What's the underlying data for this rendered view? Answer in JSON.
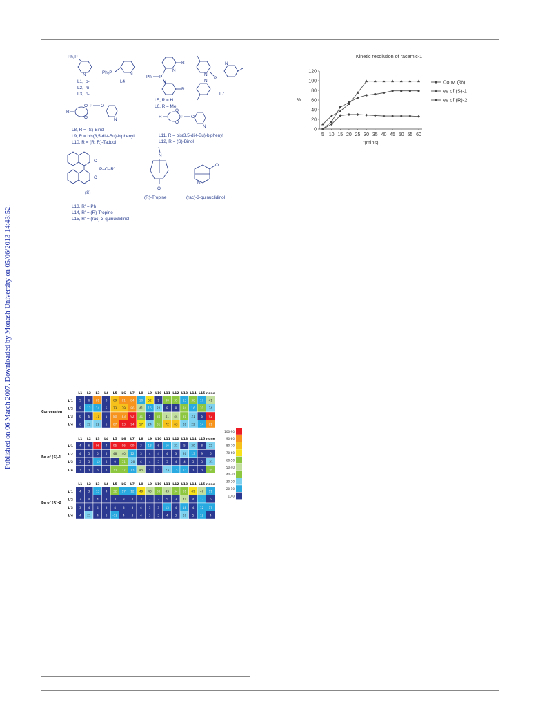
{
  "sidebar_text": "Published on 06 March 2007. Downloaded by Monash University on 05/06/2013 14:43:52.",
  "ligands": {
    "pph2": "Ph₂P",
    "l1": "L1,",
    "l1p": "p-",
    "l2": "L2,",
    "l2m": "m-",
    "l3": "L3,",
    "l3o": "o-",
    "l4": "L4",
    "ph2p": "Ph₂P",
    "l5": "L5, R = H",
    "l6": "L6, R = Me",
    "l7": "L7",
    "ph": "Ph",
    "p": "P",
    "n": "N",
    "r": "R",
    "o": "O",
    "l8": "L8, R = (S)-Binol",
    "l9": "L9, R = bis(3,5-di-t-Bu)-biphenyl",
    "l10": "L10, R = (R, R)-Taddol",
    "l11": "L11, R = bis(3,5-di-t-Bu)-biphenyl",
    "l12": "L12, R = (S)-Binol",
    "binol_s": "(S)",
    "por": "P–O–R'",
    "tropine": "(R)-Tropine",
    "quinuclidinol": "(rac)-3-quinuclidinol",
    "l13": "L13, R' = Ph",
    "l14": "L14, R' = (R)-Tropine",
    "l15": "L15, R' = (rac)-3-quinuclidinol"
  },
  "heatmap": {
    "columns": [
      "L1",
      "L2",
      "L3",
      "L4",
      "L5",
      "L6",
      "L7",
      "L8",
      "L9",
      "L10",
      "L11",
      "L12",
      "L13",
      "L14",
      "L15",
      "none"
    ],
    "rows": [
      "L'1",
      "L'2",
      "L'3",
      "L'4"
    ],
    "colors": [
      "#2b3990",
      "#29abe2",
      "#7fd1f0",
      "#8dc63f",
      "#c2dfa0",
      "#f7e11b",
      "#f7c11b",
      "#f7941d",
      "#ed1c24"
    ],
    "legend": [
      "100-90",
      "90-80",
      "80-70",
      "70-60",
      "60-50",
      "50-40",
      "40-30",
      "30-20",
      "20-10",
      "10-0"
    ],
    "legend_colors": [
      "#ed1c24",
      "#f7941d",
      "#f7c11b",
      "#f7e11b",
      "#8dc63f",
      "#c2dfa0",
      "#8dc63f",
      "#7fd1f0",
      "#29abe2",
      "#2b3990"
    ],
    "blocks": [
      {
        "label": "Conversion",
        "values": [
          [
            5,
            6,
            81,
            8,
            69,
            81,
            84,
            10,
            52,
            9,
            30,
            35,
            13,
            38,
            17,
            41
          ],
          [
            8,
            12,
            14,
            5,
            73,
            79,
            86,
            41,
            16,
            22,
            8,
            8,
            34,
            16,
            31,
            24
          ],
          [
            6,
            6,
            71,
            5,
            80,
            83,
            92,
            31,
            5,
            34,
            41,
            44,
            31,
            21,
            6,
            92
          ],
          [
            6,
            22,
            22,
            5,
            87,
            93,
            94,
            57,
            24,
            31,
            72,
            63,
            28,
            22,
            14,
            81
          ]
        ],
        "heat": [
          [
            0,
            0,
            7,
            0,
            6,
            7,
            7,
            1,
            5,
            0,
            3,
            3,
            1,
            3,
            1,
            4
          ],
          [
            0,
            1,
            1,
            0,
            6,
            6,
            7,
            4,
            1,
            2,
            0,
            0,
            3,
            1,
            3,
            2
          ],
          [
            0,
            0,
            6,
            0,
            7,
            7,
            8,
            3,
            0,
            3,
            4,
            4,
            3,
            2,
            0,
            8
          ],
          [
            0,
            2,
            2,
            0,
            7,
            8,
            8,
            5,
            2,
            3,
            6,
            6,
            2,
            2,
            1,
            7
          ]
        ]
      },
      {
        "label": "Ee of (S)-1",
        "values": [
          [
            4,
            6,
            96,
            4,
            95,
            96,
            99,
            3,
            13,
            6,
            16,
            21,
            5,
            29,
            8,
            22
          ],
          [
            4,
            5,
            5,
            5,
            48,
            40,
            12,
            3,
            4,
            4,
            4,
            3,
            26,
            13,
            9,
            6
          ],
          [
            3,
            3,
            -12,
            3,
            9,
            31,
            -20,
            6,
            4,
            3,
            3,
            4,
            4,
            3,
            3,
            -21
          ],
          [
            3,
            3,
            3,
            3,
            33,
            37,
            13,
            45,
            5,
            3,
            23,
            15,
            13,
            3,
            3,
            36
          ]
        ],
        "heat": [
          [
            0,
            0,
            8,
            0,
            8,
            8,
            8,
            0,
            1,
            0,
            1,
            2,
            0,
            2,
            0,
            2
          ],
          [
            0,
            0,
            0,
            0,
            4,
            4,
            1,
            0,
            0,
            0,
            0,
            0,
            2,
            1,
            0,
            0
          ],
          [
            0,
            0,
            1,
            0,
            0,
            3,
            2,
            0,
            0,
            0,
            0,
            0,
            0,
            0,
            0,
            2
          ],
          [
            0,
            0,
            0,
            0,
            3,
            3,
            1,
            4,
            0,
            0,
            2,
            1,
            1,
            0,
            0,
            3
          ]
        ]
      },
      {
        "label": "Ee of (R)-2",
        "values": [
          [
            4,
            3,
            13,
            4,
            32,
            17,
            12,
            49,
            40,
            38,
            43,
            34,
            31,
            49,
            46,
            11
          ],
          [
            3,
            4,
            4,
            3,
            3,
            3,
            4,
            3,
            3,
            3,
            5,
            3,
            41,
            4,
            17,
            6
          ],
          [
            3,
            4,
            4,
            3,
            4,
            3,
            3,
            4,
            3,
            3,
            13,
            4,
            18,
            4,
            12,
            17
          ],
          [
            4,
            21,
            4,
            3,
            -12,
            4,
            3,
            4,
            3,
            3,
            4,
            3,
            26,
            5,
            12,
            4
          ]
        ],
        "heat": [
          [
            0,
            0,
            1,
            0,
            3,
            1,
            1,
            5,
            4,
            3,
            4,
            3,
            3,
            5,
            4,
            1
          ],
          [
            0,
            0,
            0,
            0,
            0,
            0,
            0,
            0,
            0,
            0,
            0,
            0,
            4,
            0,
            1,
            0
          ],
          [
            0,
            0,
            0,
            0,
            0,
            0,
            0,
            0,
            0,
            0,
            1,
            0,
            1,
            0,
            1,
            1
          ],
          [
            0,
            2,
            0,
            0,
            1,
            0,
            0,
            0,
            0,
            0,
            0,
            0,
            2,
            0,
            1,
            0
          ]
        ]
      }
    ]
  },
  "chart_data": {
    "type": "line",
    "title": "Kinetic resolution of racemic-1",
    "xlabel": "t(mins)",
    "ylabel": "%",
    "x": [
      5,
      10,
      15,
      20,
      25,
      30,
      35,
      40,
      45,
      50,
      55,
      60
    ],
    "ylim": [
      0,
      120
    ],
    "yticks": [
      0,
      20,
      40,
      60,
      80,
      100,
      120
    ],
    "series": [
      {
        "name": "Conv. (%)",
        "marker": "circle",
        "values": [
          0,
          15,
          45,
          55,
          65,
          70,
          72,
          75,
          79,
          79,
          79,
          79
        ]
      },
      {
        "name": "ee of (S)-1",
        "marker": "triangle",
        "values": [
          10,
          27,
          37,
          52,
          75,
          99,
          99,
          99,
          99,
          99,
          99,
          99
        ]
      },
      {
        "name": "ee of (R)-2",
        "marker": "diamond",
        "values": [
          0,
          10,
          28,
          30,
          30,
          29,
          28,
          27,
          27,
          27,
          27,
          26
        ]
      }
    ],
    "legend_position": "right",
    "grid": false
  }
}
